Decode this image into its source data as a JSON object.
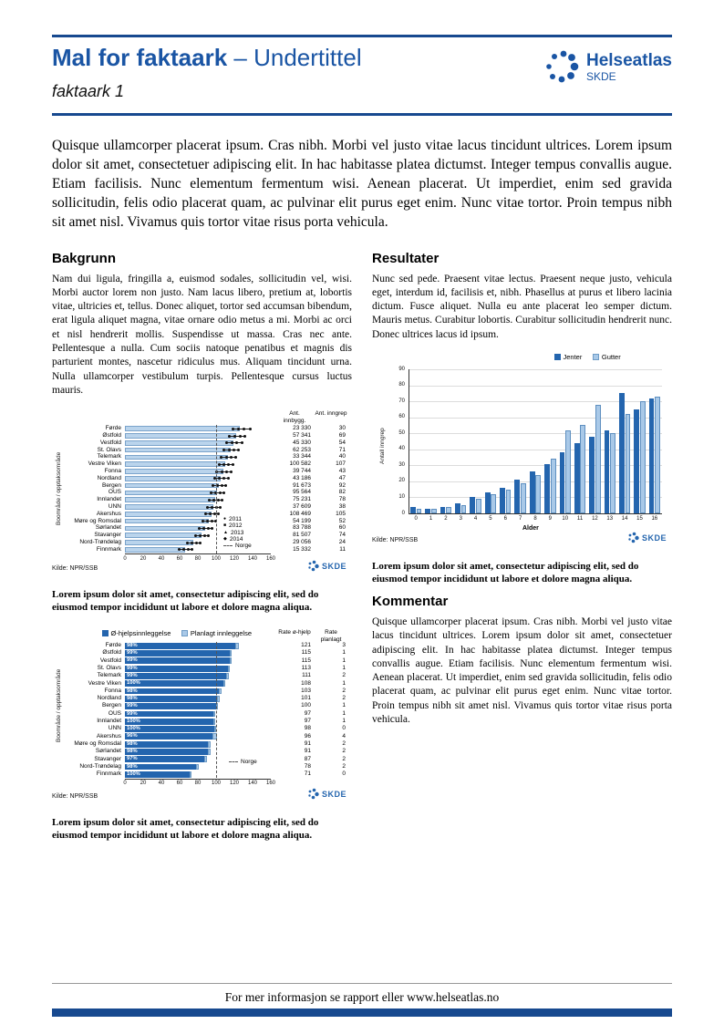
{
  "skde_label": "SKDE",
  "header": {
    "title_bold": "Mal for faktaark",
    "title_rest": "– Undertittel",
    "subtitle": "faktaark 1",
    "logo_name": "Helseatlas",
    "logo_sub": "SKDE"
  },
  "intro": "Quisque ullamcorper placerat ipsum. Cras nibh. Morbi vel justo vitae lacus tincidunt ultrices. Lorem ipsum dolor sit amet, consectetuer adipiscing elit. In hac habitasse platea dictumst. Integer tempus convallis augue. Etiam facilisis. Nunc elementum fermentum wisi. Aenean placerat. Ut imperdiet, enim sed gravida sollicitudin, felis odio placerat quam, ac pulvinar elit purus eget enim. Nunc vitae tortor. Proin tempus nibh sit amet nisl. Vivamus quis tortor vitae risus porta vehicula.",
  "sections": {
    "bakgrunn": {
      "heading": "Bakgrunn",
      "body": "Nam dui ligula, fringilla a, euismod sodales, sollicitudin vel, wisi. Morbi auctor lorem non justo. Nam lacus libero, pretium at, lobortis vitae, ultricies et, tellus. Donec aliquet, tortor sed accumsan bibendum, erat ligula aliquet magna, vitae ornare odio metus a mi. Morbi ac orci et nisl hendrerit mollis. Suspendisse ut massa. Cras nec ante. Pellentesque a nulla. Cum sociis natoque penatibus et magnis dis parturient montes, nascetur ridiculus mus. Aliquam tincidunt urna. Nulla ullamcorper vestibulum turpis. Pellentesque cursus luctus mauris."
    },
    "resultater": {
      "heading": "Resultater",
      "body": "Nunc sed pede. Praesent vitae lectus. Praesent neque justo, vehicula eget, interdum id, facilisis et, nibh. Phasellus at purus et libero lacinia dictum. Fusce aliquet. Nulla eu ante placerat leo semper dictum. Mauris metus. Curabitur lobortis. Curabitur sollicitudin hendrerit nunc. Donec ultrices lacus id ipsum."
    },
    "kommentar": {
      "heading": "Kommentar",
      "body": "Quisque ullamcorper placerat ipsum. Cras nibh. Morbi vel justo vitae lacus tincidunt ultrices. Lorem ipsum dolor sit amet, consectetuer adipiscing elit. In hac habitasse platea dictumst. Integer tempus convallis augue. Etiam facilisis. Nunc elementum fermentum wisi. Aenean placerat. Ut imperdiet, enim sed gravida sollicitudin, felis odio placerat quam, ac pulvinar elit purus eget enim. Nunc vitae tortor. Proin tempus nibh sit amet nisl. Vivamus quis tortor vitae risus porta vehicula."
    }
  },
  "caption": "Lorem ipsum dolor sit amet, consectetur adipiscing elit, sed do eiusmod tempor incididunt ut labore et dolore magna aliqua.",
  "footer": {
    "text": "For mer informasjon se rapport eller www.helseatlas.no"
  },
  "colors": {
    "brand_blue": "#17498F",
    "title_blue": "#1A55A4",
    "bar_dark": "#2465AE",
    "bar_light": "#A9C9E8"
  },
  "chart_data": [
    {
      "type": "bar",
      "orientation": "horizontal",
      "ylabel": "Boområde / opptaksområde",
      "col_headers": [
        "Ant. innbygg.",
        "Ant. inngrep"
      ],
      "legend_years": [
        "2011",
        "2012",
        "2013",
        "2014"
      ],
      "legend_norge": "Norge",
      "source": "Kilde: NPR/SSB",
      "xlim": [
        0,
        160
      ],
      "xticks": [
        0,
        20,
        40,
        60,
        80,
        100,
        120,
        140,
        160
      ],
      "norge_ref": 100,
      "rows": [
        {
          "label": "Førde",
          "rate": 126,
          "year_points": [
            118,
            124,
            130,
            137
          ],
          "innbygg": "23 330",
          "inngrep": "30"
        },
        {
          "label": "Østfold",
          "rate": 122,
          "year_points": [
            114,
            120,
            126,
            131
          ],
          "innbygg": "57 341",
          "inngrep": "69"
        },
        {
          "label": "Vestfold",
          "rate": 119,
          "year_points": [
            111,
            117,
            122,
            128
          ],
          "innbygg": "45 330",
          "inngrep": "54"
        },
        {
          "label": "St. Olavs",
          "rate": 116,
          "year_points": [
            108,
            114,
            119,
            124
          ],
          "innbygg": "62 253",
          "inngrep": "71"
        },
        {
          "label": "Telemark",
          "rate": 113,
          "year_points": [
            105,
            111,
            116,
            121
          ],
          "innbygg": "33 344",
          "inngrep": "40"
        },
        {
          "label": "Vestre Viken",
          "rate": 110,
          "year_points": [
            103,
            108,
            113,
            118
          ],
          "innbygg": "100 582",
          "inngrep": "107"
        },
        {
          "label": "Fonna",
          "rate": 108,
          "year_points": [
            100,
            106,
            111,
            116
          ],
          "innbygg": "39 744",
          "inngrep": "43"
        },
        {
          "label": "Nordland",
          "rate": 105,
          "year_points": [
            98,
            103,
            108,
            113
          ],
          "innbygg": "43 186",
          "inngrep": "47"
        },
        {
          "label": "Bergen",
          "rate": 103,
          "year_points": [
            96,
            101,
            106,
            110
          ],
          "innbygg": "91 673",
          "inngrep": "92"
        },
        {
          "label": "OUS",
          "rate": 101,
          "year_points": [
            94,
            99,
            104,
            108
          ],
          "innbygg": "95 564",
          "inngrep": "82"
        },
        {
          "label": "Innlandet",
          "rate": 99,
          "year_points": [
            92,
            97,
            102,
            106
          ],
          "innbygg": "75 231",
          "inngrep": "78"
        },
        {
          "label": "UNN",
          "rate": 97,
          "year_points": [
            90,
            95,
            100,
            104
          ],
          "innbygg": "37 609",
          "inngrep": "38"
        },
        {
          "label": "Akershus",
          "rate": 95,
          "year_points": [
            88,
            93,
            98,
            102
          ],
          "innbygg": "108 469",
          "inngrep": "105"
        },
        {
          "label": "Møre og Romsdal",
          "rate": 92,
          "year_points": [
            85,
            90,
            95,
            99
          ],
          "innbygg": "54 199",
          "inngrep": "52"
        },
        {
          "label": "Sørlandet",
          "rate": 88,
          "year_points": [
            81,
            86,
            91,
            95
          ],
          "innbygg": "83 788",
          "inngrep": "60"
        },
        {
          "label": "Stavanger",
          "rate": 84,
          "year_points": [
            77,
            82,
            87,
            91
          ],
          "innbygg": "81 507",
          "inngrep": "74"
        },
        {
          "label": "Nord-Trøndelag",
          "rate": 75,
          "year_points": [
            68,
            73,
            78,
            82
          ],
          "innbygg": "29 056",
          "inngrep": "24"
        },
        {
          "label": "Finnmark",
          "rate": 66,
          "year_points": [
            59,
            64,
            69,
            73
          ],
          "innbygg": "15 332",
          "inngrep": "11"
        }
      ]
    },
    {
      "type": "bar",
      "orientation": "vertical",
      "xlabel": "Alder",
      "ylabel": "Antall inngrep",
      "ylim": [
        0,
        90
      ],
      "yticks": [
        0,
        10,
        20,
        30,
        40,
        50,
        60,
        70,
        80,
        90
      ],
      "categories": [
        "0",
        "1",
        "2",
        "3",
        "4",
        "5",
        "6",
        "7",
        "8",
        "9",
        "10",
        "11",
        "12",
        "13",
        "14",
        "15",
        "16"
      ],
      "series": [
        {
          "name": "Jenter",
          "values": [
            4,
            3,
            4,
            6,
            10,
            13,
            16,
            21,
            26,
            31,
            38,
            44,
            48,
            52,
            75,
            65,
            72
          ]
        },
        {
          "name": "Gutter",
          "values": [
            3,
            3,
            4,
            5,
            9,
            12,
            15,
            19,
            24,
            34,
            52,
            55,
            68,
            50,
            62,
            70,
            73
          ]
        }
      ],
      "source": "Kilde: NPR/SSB",
      "legend_position": "top-right",
      "grid": true
    },
    {
      "type": "bar",
      "orientation": "horizontal-stacked",
      "ylabel": "Boområde / opptaksområde",
      "legend": [
        "Ø-hjelpsinnleggelse",
        "Planlagt innleggelse"
      ],
      "col_headers": [
        "Rate ø-hjelp",
        "Rate planlagt"
      ],
      "norge_label": "Norge",
      "source": "Kilde: NPR/SSB",
      "xlim": [
        0,
        160
      ],
      "xticks": [
        0,
        20,
        40,
        60,
        80,
        100,
        120,
        140,
        160
      ],
      "norge_ref": 100,
      "rows": [
        {
          "label": "Førde",
          "pct": "98%",
          "ohjelp": 121,
          "planlagt": 3
        },
        {
          "label": "Østfold",
          "pct": "99%",
          "ohjelp": 115,
          "planlagt": 1
        },
        {
          "label": "Vestfold",
          "pct": "99%",
          "ohjelp": 115,
          "planlagt": 1
        },
        {
          "label": "St. Olavs",
          "pct": "99%",
          "ohjelp": 113,
          "planlagt": 1
        },
        {
          "label": "Telemark",
          "pct": "99%",
          "ohjelp": 111,
          "planlagt": 2
        },
        {
          "label": "Vestre Viken",
          "pct": "100%",
          "ohjelp": 108,
          "planlagt": 1
        },
        {
          "label": "Fonna",
          "pct": "98%",
          "ohjelp": 103,
          "planlagt": 2
        },
        {
          "label": "Nordland",
          "pct": "98%",
          "ohjelp": 101,
          "planlagt": 2
        },
        {
          "label": "Bergen",
          "pct": "99%",
          "ohjelp": 100,
          "planlagt": 1
        },
        {
          "label": "OUS",
          "pct": "99%",
          "ohjelp": 97,
          "planlagt": 1
        },
        {
          "label": "Innlandet",
          "pct": "100%",
          "ohjelp": 97,
          "planlagt": 1
        },
        {
          "label": "UNN",
          "pct": "100%",
          "ohjelp": 98,
          "planlagt": 0
        },
        {
          "label": "Akershus",
          "pct": "96%",
          "ohjelp": 96,
          "planlagt": 4
        },
        {
          "label": "Møre og Romsdal",
          "pct": "98%",
          "ohjelp": 91,
          "planlagt": 2
        },
        {
          "label": "Sørlandet",
          "pct": "98%",
          "ohjelp": 91,
          "planlagt": 2
        },
        {
          "label": "Stavanger",
          "pct": "97%",
          "ohjelp": 87,
          "planlagt": 2
        },
        {
          "label": "Nord-Trøndelag",
          "pct": "98%",
          "ohjelp": 78,
          "planlagt": 2
        },
        {
          "label": "Finnmark",
          "pct": "100%",
          "ohjelp": 71,
          "planlagt": 0
        }
      ]
    }
  ]
}
